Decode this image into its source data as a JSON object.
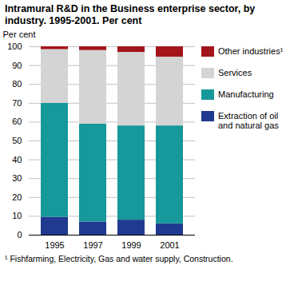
{
  "chart_data": {
    "type": "bar",
    "title": "Intramural R&D in the Business enterprise sector, by industry. 1995-2001. Per cent",
    "y_label": "Per cent",
    "note": "¹ Fishfarming, Electricity, Gas and water supply, Construction.",
    "categories": [
      "1995",
      "1997",
      "1999",
      "2001"
    ],
    "stacked": true,
    "grid": true,
    "legend": "right",
    "ylim": [
      0,
      100
    ],
    "yticks": [
      0,
      10,
      20,
      30,
      40,
      50,
      60,
      70,
      80,
      90,
      100
    ],
    "series": [
      {
        "name": "Extraction of oil and natural gas",
        "color": "#1f3a8f",
        "values": [
          9.5,
          7,
          8,
          6
        ]
      },
      {
        "name": "Manufacturing",
        "color": "#17989a",
        "values": [
          60.5,
          52,
          50,
          52
        ]
      },
      {
        "name": "Services",
        "color": "#d4d4d4",
        "values": [
          28.5,
          39,
          39,
          36.5
        ]
      },
      {
        "name": "Other industries¹",
        "color": "#a3151b",
        "values": [
          1.5,
          2,
          3,
          5.5
        ]
      }
    ]
  }
}
